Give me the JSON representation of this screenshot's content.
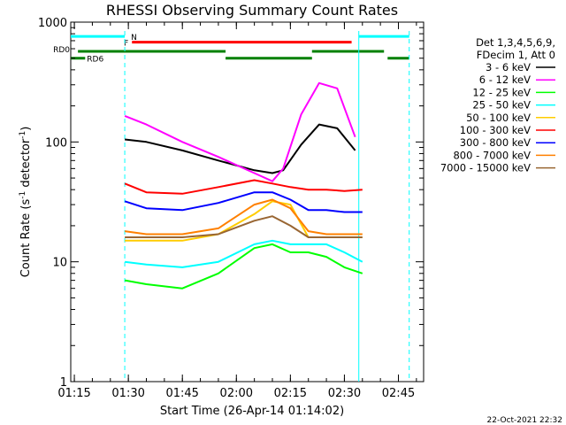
{
  "chart_data": {
    "type": "line",
    "title": "RHESSI Observing Summary Count Rates",
    "xlabel": "Start Time (26-Apr-14 01:14:02)",
    "ylabel_main": "Count Rate (s",
    "ylabel_sup1": "-1",
    "ylabel_mid": " detector",
    "ylabel_sup2": "-1",
    "ylabel_end": ")",
    "y_scale": "log",
    "ylim": [
      1,
      1000
    ],
    "xlim": [
      "01:14",
      "02:52"
    ],
    "x_ticks": [
      "01:15",
      "01:30",
      "01:45",
      "02:00",
      "02:15",
      "02:30",
      "02:45"
    ],
    "y_ticks": [
      "1",
      "10",
      "100",
      "1000"
    ],
    "timestamp": "22-Oct-2021 22:32",
    "legend_header": [
      "Det 1,3,4,5,6,9,",
      "FDecim 1, Att 0"
    ],
    "legend_position": "right",
    "series": [
      {
        "name": "3 - 6 keV",
        "color": "#000000",
        "x": [
          "01:29",
          "01:35",
          "01:45",
          "01:55",
          "02:05",
          "02:10",
          "02:13",
          "02:18",
          "02:23",
          "02:28",
          "02:33"
        ],
        "values": [
          105,
          100,
          85,
          70,
          58,
          55,
          58,
          95,
          140,
          130,
          85
        ]
      },
      {
        "name": "6 - 12 keV",
        "color": "#ff00ff",
        "x": [
          "01:29",
          "01:35",
          "01:45",
          "01:55",
          "02:05",
          "02:10",
          "02:13",
          "02:18",
          "02:23",
          "02:28",
          "02:33"
        ],
        "values": [
          165,
          140,
          100,
          75,
          55,
          47,
          60,
          170,
          310,
          280,
          110
        ]
      },
      {
        "name": "12 - 25 keV",
        "color": "#00ff00",
        "x": [
          "01:29",
          "01:35",
          "01:45",
          "01:55",
          "02:05",
          "02:10",
          "02:15",
          "02:20",
          "02:25",
          "02:30",
          "02:35"
        ],
        "values": [
          7,
          6.5,
          6,
          8,
          13,
          14,
          12,
          12,
          11,
          9,
          8
        ]
      },
      {
        "name": "25 - 50 keV",
        "color": "#00ffff",
        "x": [
          "01:29",
          "01:35",
          "01:45",
          "01:55",
          "02:05",
          "02:10",
          "02:15",
          "02:20",
          "02:25",
          "02:30",
          "02:35"
        ],
        "values": [
          10,
          9.5,
          9,
          10,
          14,
          15,
          14,
          14,
          14,
          12,
          10
        ]
      },
      {
        "name": "50 - 100 keV",
        "color": "#ffcc00",
        "x": [
          "01:29",
          "01:35",
          "01:45",
          "01:55",
          "02:05",
          "02:10",
          "02:15",
          "02:20",
          "02:25",
          "02:30",
          "02:35"
        ],
        "values": [
          15,
          15,
          15,
          17,
          25,
          32,
          30,
          16,
          16,
          16,
          16
        ]
      },
      {
        "name": "100 - 300 keV",
        "color": "#ff0000",
        "x": [
          "01:29",
          "01:35",
          "01:45",
          "01:55",
          "02:05",
          "02:10",
          "02:15",
          "02:20",
          "02:25",
          "02:30",
          "02:35"
        ],
        "values": [
          45,
          38,
          37,
          42,
          48,
          45,
          42,
          40,
          40,
          39,
          40
        ]
      },
      {
        "name": "300 - 800 keV",
        "color": "#0000ff",
        "x": [
          "01:29",
          "01:35",
          "01:45",
          "01:55",
          "02:05",
          "02:10",
          "02:15",
          "02:20",
          "02:25",
          "02:30",
          "02:35"
        ],
        "values": [
          32,
          28,
          27,
          31,
          38,
          38,
          33,
          27,
          27,
          26,
          26
        ]
      },
      {
        "name": "800 - 7000 keV",
        "color": "#ff8000",
        "x": [
          "01:29",
          "01:35",
          "01:45",
          "01:55",
          "02:05",
          "02:10",
          "02:15",
          "02:20",
          "02:25",
          "02:30",
          "02:35"
        ],
        "values": [
          18,
          17,
          17,
          19,
          30,
          33,
          28,
          18,
          17,
          17,
          17
        ]
      },
      {
        "name": "7000 - 15000 keV",
        "color": "#996633",
        "x": [
          "01:29",
          "01:35",
          "01:45",
          "01:55",
          "02:05",
          "02:10",
          "02:15",
          "02:20",
          "02:25",
          "02:30",
          "02:35"
        ],
        "values": [
          16,
          16,
          16,
          17,
          22,
          24,
          20,
          16,
          16,
          16,
          16
        ]
      }
    ],
    "flag_bars": [
      {
        "label": "N",
        "color": "#00ffff",
        "label_color": "#00ffff",
        "level": 760,
        "segments": [
          [
            "01:14",
            "01:29"
          ],
          [
            "02:34",
            "02:48"
          ]
        ]
      },
      {
        "label": "F",
        "color": "#ff0000",
        "label_color": "#ff0000",
        "level": 680,
        "segments": [
          [
            "01:31",
            "02:32"
          ]
        ]
      },
      {
        "label": "RD0",
        "color": "#008000",
        "label_color": "#008000",
        "level": 570,
        "segments": [
          [
            "01:16",
            "01:57"
          ],
          [
            "02:21",
            "02:41"
          ]
        ]
      },
      {
        "label": "RD6",
        "color": "#008000",
        "label_color": "#008000",
        "level": 500,
        "segments": [
          [
            "01:14",
            "01:18"
          ],
          [
            "01:57",
            "02:21"
          ],
          [
            "02:42",
            "02:48"
          ]
        ]
      }
    ],
    "vertical_markers": [
      {
        "x": "01:29",
        "color": "#00ffff",
        "style": "dashed"
      },
      {
        "x": "02:34",
        "color": "#00ffff",
        "style": "solid"
      },
      {
        "x": "02:48",
        "color": "#00ffff",
        "style": "dashed"
      }
    ]
  }
}
